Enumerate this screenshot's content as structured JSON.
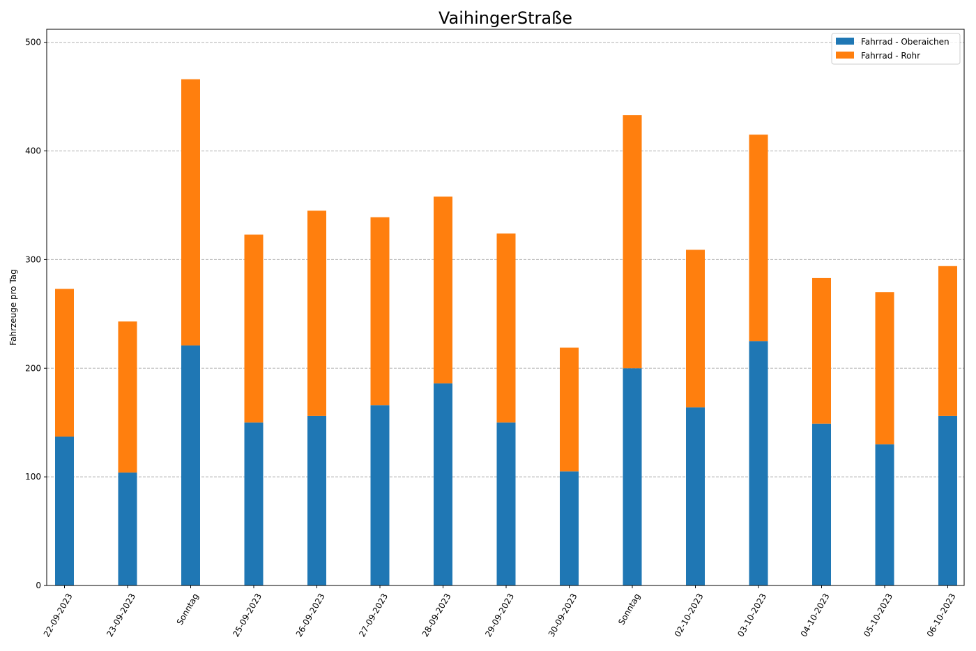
{
  "chart_data": {
    "type": "bar",
    "stacked": true,
    "title": "VaihingerStraße",
    "xlabel": "",
    "ylabel": "Fahrzeuge pro Tag",
    "ylim": [
      0,
      512
    ],
    "yticks": [
      0,
      100,
      200,
      300,
      400,
      500
    ],
    "grid": "y-dashed",
    "legend_position": "top-right",
    "categories": [
      "22-09-2023",
      "23-09-2023",
      "Sonntag",
      "25-09-2023",
      "26-09-2023",
      "27-09-2023",
      "28-09-2023",
      "29-09-2023",
      "30-09-2023",
      "Sonntag",
      "02-10-2023",
      "03-10-2023",
      "04-10-2023",
      "05-10-2023",
      "06-10-2023"
    ],
    "series": [
      {
        "name": "Fahrrad - Oberaichen",
        "color": "#1f77b4",
        "values": [
          137,
          104,
          221,
          150,
          156,
          166,
          186,
          150,
          105,
          200,
          164,
          225,
          149,
          130,
          156
        ]
      },
      {
        "name": "Fahrrad - Rohr",
        "color": "#ff7f0e",
        "values": [
          136,
          139,
          245,
          173,
          189,
          173,
          172,
          174,
          114,
          233,
          145,
          190,
          134,
          140,
          138
        ]
      }
    ]
  }
}
